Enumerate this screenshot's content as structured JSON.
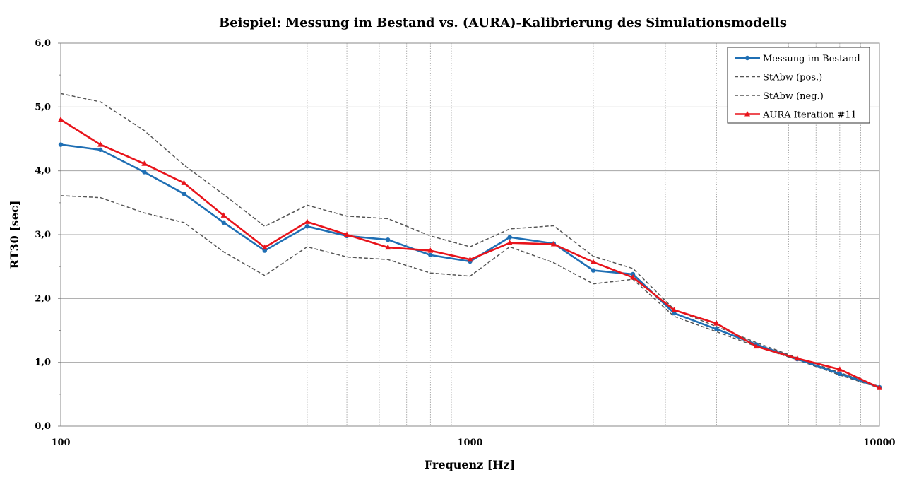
{
  "chart_data": {
    "type": "line",
    "title": "Beispiel: Messung im Bestand vs. (AURA)-Kalibrierung des Simulationsmodells",
    "xlabel": "Frequenz [Hz]",
    "ylabel": "RT30 [sec]",
    "x_scale": "log",
    "xlim": [
      100,
      10000
    ],
    "ylim": [
      0,
      6
    ],
    "x_ticks": [
      100,
      1000,
      10000
    ],
    "x_tick_labels": [
      "100",
      "1000",
      "10000"
    ],
    "y_ticks": [
      0,
      1,
      2,
      3,
      4,
      5,
      6
    ],
    "y_tick_labels": [
      "0,0",
      "1,0",
      "2,0",
      "3,0",
      "4,0",
      "5,0",
      "6,0"
    ],
    "grid": true,
    "legend_position": "top-right",
    "x": [
      100,
      125,
      160,
      200,
      250,
      315,
      400,
      500,
      630,
      800,
      1000,
      1250,
      1600,
      2000,
      2500,
      3150,
      4000,
      5000,
      6300,
      8000,
      10000
    ],
    "series": [
      {
        "name": "Messung im Bestand",
        "color": "#1f6fb4",
        "style": "solid-circle",
        "values": [
          4.41,
          4.33,
          3.98,
          3.64,
          3.19,
          2.75,
          3.13,
          2.98,
          2.92,
          2.68,
          2.58,
          2.96,
          2.86,
          2.44,
          2.38,
          1.77,
          1.52,
          1.28,
          1.05,
          0.82,
          0.61
        ]
      },
      {
        "name": "StAbw (pos.)",
        "color": "#555555",
        "style": "dashed",
        "values": [
          5.21,
          5.08,
          4.63,
          4.09,
          3.63,
          3.13,
          3.46,
          3.29,
          3.25,
          2.98,
          2.81,
          3.09,
          3.14,
          2.66,
          2.47,
          1.83,
          1.56,
          1.31,
          1.07,
          0.84,
          0.62
        ]
      },
      {
        "name": "StAbw (neg.)",
        "color": "#555555",
        "style": "dashed",
        "values": [
          3.61,
          3.58,
          3.34,
          3.19,
          2.73,
          2.36,
          2.81,
          2.65,
          2.61,
          2.4,
          2.35,
          2.81,
          2.56,
          2.23,
          2.3,
          1.72,
          1.48,
          1.25,
          1.04,
          0.8,
          0.6
        ]
      },
      {
        "name": "AURA Iteration #11",
        "color": "#e8141b",
        "style": "solid-triangle",
        "values": [
          4.8,
          4.41,
          4.11,
          3.81,
          3.3,
          2.8,
          3.2,
          3.0,
          2.8,
          2.75,
          2.61,
          2.87,
          2.85,
          2.57,
          2.33,
          1.82,
          1.61,
          1.25,
          1.06,
          0.89,
          0.6
        ]
      }
    ]
  }
}
